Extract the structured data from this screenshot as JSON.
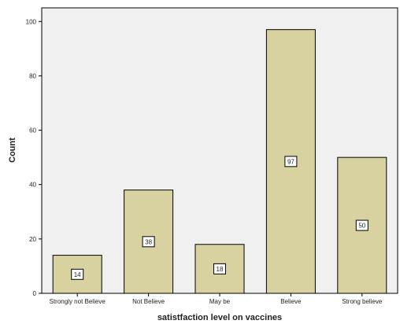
{
  "chart_data": {
    "type": "bar",
    "categories": [
      "Strongly not Believe",
      "Not Believe",
      "May be",
      "Believe",
      "Strong believe"
    ],
    "values": [
      14,
      38,
      18,
      97,
      50
    ],
    "data_labels": [
      "14",
      "38",
      "18",
      "97",
      "50"
    ],
    "xlabel": "satistfaction level on vaccines",
    "ylabel": "Count",
    "ylim": [
      0,
      105
    ],
    "yticks": [
      "0",
      "20",
      "40",
      "60",
      "80",
      "100"
    ],
    "grid": false,
    "colors": {
      "bar": "#d8d2a0",
      "plot_bg": "#f0f0f0",
      "stroke": "#000000"
    }
  }
}
